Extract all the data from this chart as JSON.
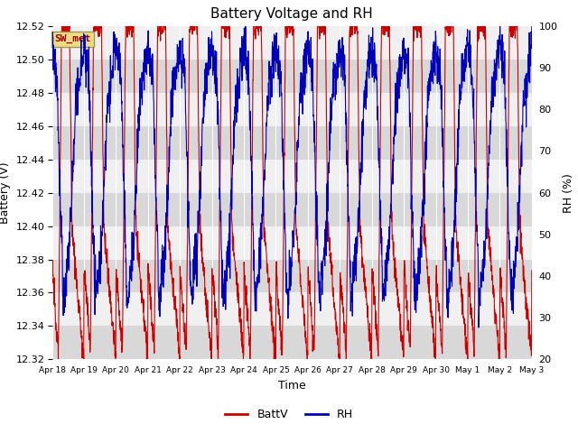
{
  "title": "Battery Voltage and RH",
  "xlabel": "Time",
  "ylabel_left": "Battery (V)",
  "ylabel_right": "RH (%)",
  "annotation": "SW_met",
  "ylim_left": [
    12.32,
    12.52
  ],
  "ylim_right": [
    20,
    100
  ],
  "yticks_left": [
    12.32,
    12.34,
    12.36,
    12.38,
    12.4,
    12.42,
    12.44,
    12.46,
    12.48,
    12.5,
    12.52
  ],
  "yticks_right": [
    20,
    30,
    40,
    50,
    60,
    70,
    80,
    90,
    100
  ],
  "xtick_labels": [
    "Apr 18",
    "Apr 19",
    "Apr 20",
    "Apr 21",
    "Apr 22",
    "Apr 23",
    "Apr 24",
    "Apr 25",
    "Apr 26",
    "Apr 27",
    "Apr 28",
    "Apr 29",
    "Apr 30",
    "May 1",
    "May 2",
    "May 3"
  ],
  "color_batt": "#cc0000",
  "color_rh": "#0000bb",
  "legend_labels": [
    "BattV",
    "RH"
  ],
  "bg_white": "#f0f0f0",
  "bg_dark": "#d8d8d8",
  "annotation_fg": "#990000",
  "annotation_bg": "#eedc82",
  "annotation_edge": "#999955"
}
